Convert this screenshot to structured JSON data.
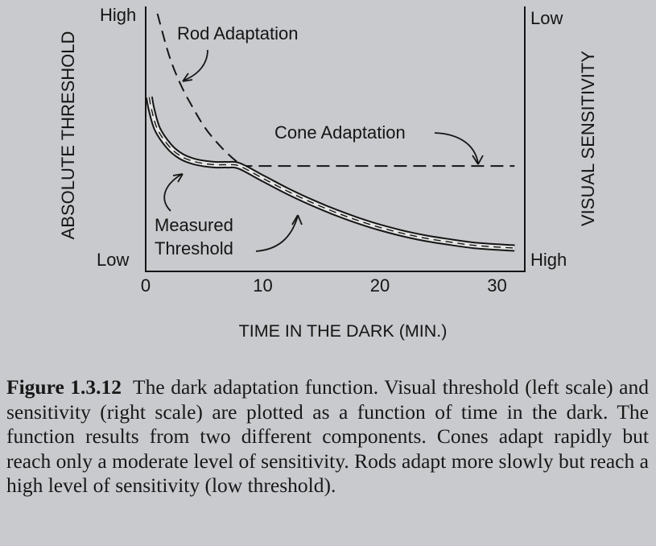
{
  "chart_data": {
    "type": "line",
    "title": "",
    "xlabel": "TIME IN THE DARK (MIN.)",
    "ylabel_left": "ABSOLUTE THRESHOLD",
    "ylabel_right": "VISUAL SENSITIVITY",
    "xlim": [
      0,
      33
    ],
    "ylim": [
      0,
      100
    ],
    "x_ticks": [
      0,
      10,
      20,
      30
    ],
    "y_left_ticks": {
      "high": "High",
      "low": "Low"
    },
    "y_right_ticks": {
      "low": "Low",
      "high": "High"
    },
    "grid": false,
    "series": [
      {
        "name": "Rod Adaptation",
        "style": "dashed",
        "x": [
          1,
          2,
          3,
          4,
          5,
          6,
          7,
          8,
          9
        ],
        "y": [
          100,
          83,
          71,
          62,
          54,
          48,
          43,
          39,
          36
        ]
      },
      {
        "name": "Cone Adaptation",
        "style": "dashed",
        "x": [
          8,
          12,
          16,
          20,
          24,
          28,
          31.5
        ],
        "y": [
          38,
          38,
          38,
          38,
          38,
          38,
          38
        ]
      },
      {
        "name": "Measured Threshold",
        "style": "double-line",
        "x": [
          0.3,
          0.5,
          1,
          2,
          3,
          4,
          5,
          6,
          7,
          8,
          10,
          12,
          14,
          16,
          18,
          20,
          22,
          24,
          26,
          28,
          30,
          31.5
        ],
        "y": [
          66,
          61,
          53,
          46,
          42,
          40,
          39,
          38.5,
          38.5,
          38,
          33,
          28,
          23.5,
          19.5,
          16,
          13,
          10.5,
          8.5,
          7,
          5.7,
          5,
          4.6
        ]
      }
    ],
    "annotations": [
      {
        "text": "Rod Adaptation",
        "target_series": "Rod Adaptation"
      },
      {
        "text": "Cone Adaptation",
        "target_series": "Cone Adaptation"
      },
      {
        "text": "Measured\nThreshold",
        "target_series": "Measured Threshold"
      }
    ]
  },
  "caption": {
    "label": "Figure 1.3.12",
    "text": "The dark adaptation function. Visual threshold (left scale) and sensitivity (right scale) are plotted as a function of time in the dark. The function results from two different components. Cones adapt rapidly but reach only a moderate level of sensitivity. Rods adapt more slowly but reach a high level of sensitivity (low threshold)."
  },
  "colors": {
    "background": "#c9cacd",
    "ink": "#151515",
    "line_fill": "#e6e6e6"
  }
}
